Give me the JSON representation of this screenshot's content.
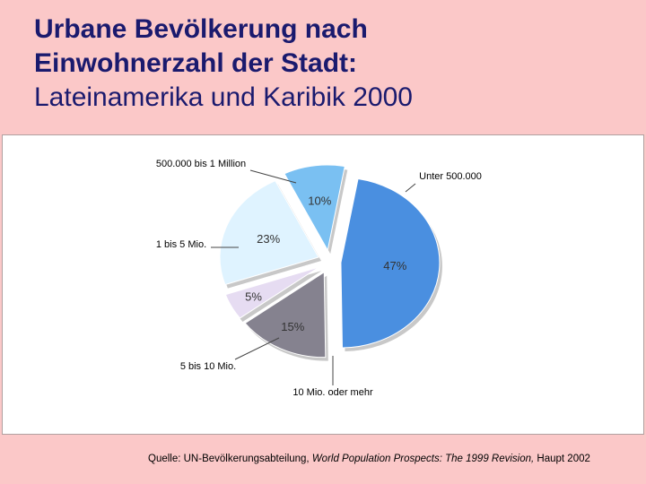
{
  "title": {
    "line1": "Urbane Bevölkerung nach",
    "line2": "Einwohnerzahl der Stadt:",
    "line3": "Lateinamerika und Karibik 2000"
  },
  "chart_data": {
    "type": "pie",
    "categories": [
      "Unter 500.000",
      "10 Mio. oder mehr",
      "5 bis 10 Mio.",
      "1 bis 5 Mio.",
      "500.000 bis 1 Million"
    ],
    "values": [
      47,
      15,
      5,
      23,
      10
    ],
    "value_labels": [
      "47%",
      "15%",
      "5%",
      "23%",
      "10%"
    ],
    "colors": [
      "#4a8fe0",
      "#85828f",
      "#e6dcf2",
      "#dff3ff",
      "#7ac0f2"
    ],
    "exploded": true,
    "legend": "callout labels"
  },
  "source": {
    "prefix": "Quelle: UN-Bevölkerungsabteilung, ",
    "italic": "World Population Prospects: The 1999 Revision,",
    "suffix": " Haupt 2002"
  }
}
